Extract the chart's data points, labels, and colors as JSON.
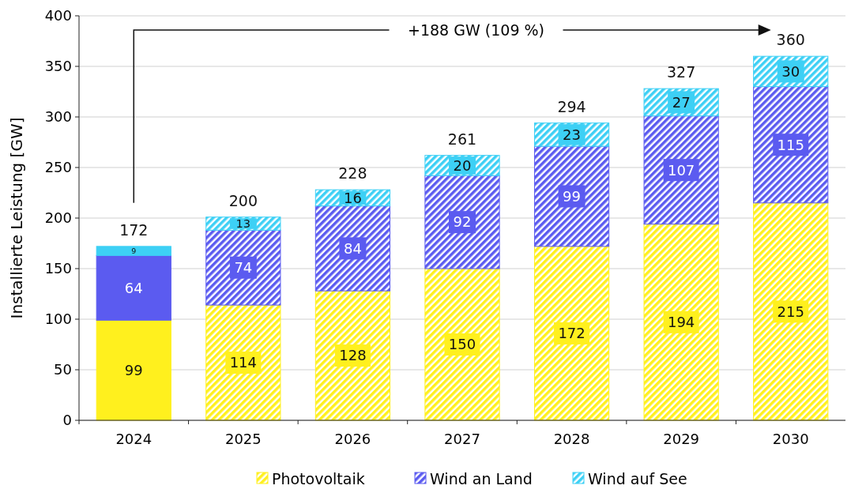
{
  "chart_data": {
    "type": "bar",
    "stacked": true,
    "ylabel": "Installierte Leistung [GW]",
    "categories": [
      "2024",
      "2025",
      "2026",
      "2027",
      "2028",
      "2029",
      "2030"
    ],
    "series": [
      {
        "name": "Photovoltaik",
        "color": "#fff01e",
        "values": [
          99,
          114,
          128,
          150,
          172,
          194,
          215
        ]
      },
      {
        "name": "Wind an Land",
        "color": "#5b5bf0",
        "values": [
          64,
          74,
          84,
          92,
          99,
          107,
          115
        ]
      },
      {
        "name": "Wind auf See",
        "color": "#3dd0f5",
        "values": [
          9,
          13,
          16,
          20,
          23,
          27,
          30
        ]
      }
    ],
    "totals": [
      "172",
      "200",
      "228",
      "261",
      "294",
      "327",
      "360"
    ],
    "data_labels": true,
    "annotations": [
      "+188 GW (109 %)"
    ],
    "ylim": [
      0,
      400
    ],
    "yticks": [
      0,
      50,
      100,
      150,
      200,
      250,
      300,
      350,
      400
    ],
    "grid": "y",
    "legend": "bottom"
  }
}
